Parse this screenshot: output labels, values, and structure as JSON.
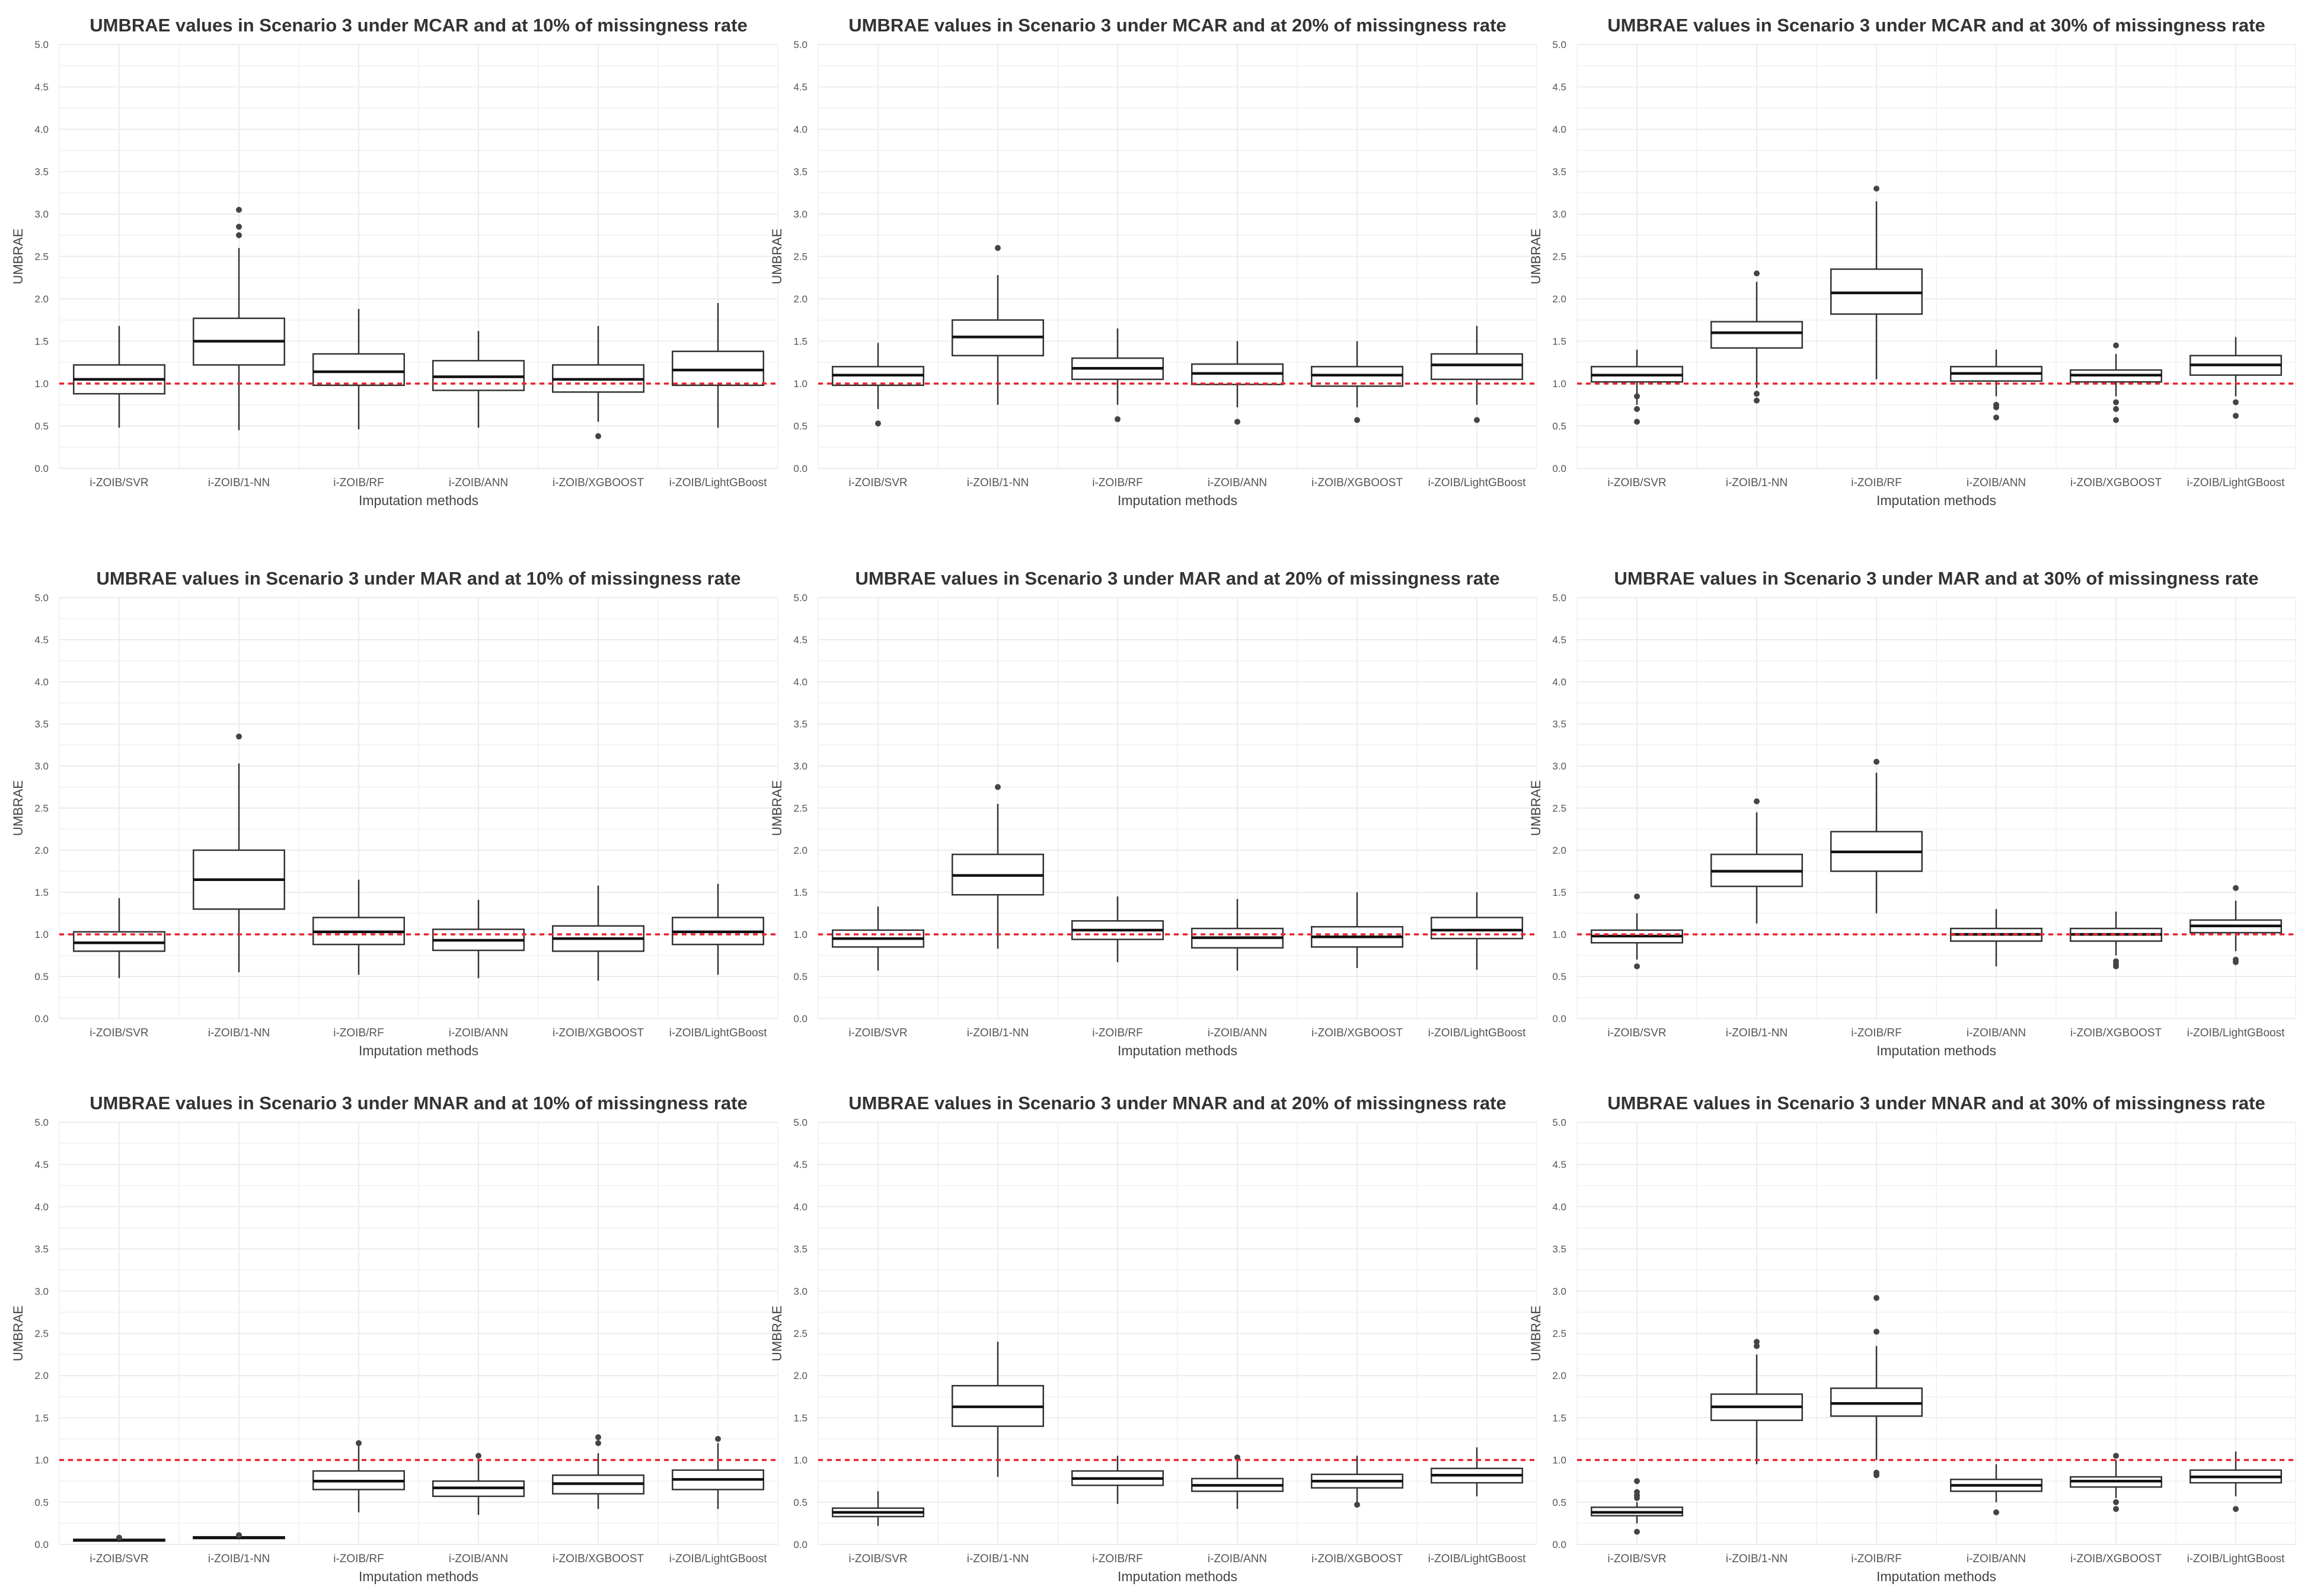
{
  "figure": {
    "layout": "3x3 grid of box plots",
    "categories": [
      "i-ZOIB/SVR",
      "i-ZOIB/1-NN",
      "i-ZOIB/RF",
      "i-ZOIB/ANN",
      "i-ZOIB/XGBOOST",
      "i-ZOIB/LightGBoost"
    ],
    "xlabel": "Imputation methods",
    "ylabel": "UMBRAE",
    "reference_line": 1.0,
    "reference_color": "#e8222b",
    "box_color": "#333333",
    "grid_color": "#ececec"
  },
  "chart_data": [
    {
      "type": "box",
      "title": "UMBRAE values in Scenario 3 under MCAR and at 10% of missingness rate",
      "xlabel": "Imputation methods",
      "ylabel": "UMBRAE",
      "ylim": [
        0,
        5
      ],
      "yticks": [
        "0.0",
        "0.5",
        "1.0",
        "1.5",
        "2.0",
        "2.5",
        "3.0",
        "3.5",
        "4.0",
        "4.5",
        "5.0"
      ],
      "reference_line": 1.0,
      "categories": [
        "i-ZOIB/SVR",
        "i-ZOIB/1-NN",
        "i-ZOIB/RF",
        "i-ZOIB/ANN",
        "i-ZOIB/XGBOOST",
        "i-ZOIB/LightGBoost"
      ],
      "boxes": [
        {
          "whisker_low": 0.48,
          "q1": 0.88,
          "median": 1.05,
          "q3": 1.22,
          "whisker_high": 1.68,
          "outliers": []
        },
        {
          "whisker_low": 0.45,
          "q1": 1.22,
          "median": 1.5,
          "q3": 1.77,
          "whisker_high": 2.6,
          "outliers": [
            2.75,
            2.85,
            3.05
          ]
        },
        {
          "whisker_low": 0.46,
          "q1": 0.98,
          "median": 1.14,
          "q3": 1.35,
          "whisker_high": 1.88,
          "outliers": []
        },
        {
          "whisker_low": 0.48,
          "q1": 0.92,
          "median": 1.08,
          "q3": 1.27,
          "whisker_high": 1.62,
          "outliers": []
        },
        {
          "whisker_low": 0.55,
          "q1": 0.9,
          "median": 1.05,
          "q3": 1.22,
          "whisker_high": 1.68,
          "outliers": [
            0.38
          ]
        },
        {
          "whisker_low": 0.48,
          "q1": 0.98,
          "median": 1.16,
          "q3": 1.38,
          "whisker_high": 1.95,
          "outliers": []
        }
      ]
    },
    {
      "type": "box",
      "title": "UMBRAE values in Scenario 3 under MCAR and at 20% of missingness rate",
      "xlabel": "Imputation methods",
      "ylabel": "UMBRAE",
      "ylim": [
        0,
        5
      ],
      "yticks": [
        "0.0",
        "0.5",
        "1.0",
        "1.5",
        "2.0",
        "2.5",
        "3.0",
        "3.5",
        "4.0",
        "4.5",
        "5.0"
      ],
      "reference_line": 1.0,
      "categories": [
        "i-ZOIB/SVR",
        "i-ZOIB/1-NN",
        "i-ZOIB/RF",
        "i-ZOIB/ANN",
        "i-ZOIB/XGBOOST",
        "i-ZOIB/LightGBoost"
      ],
      "boxes": [
        {
          "whisker_low": 0.7,
          "q1": 0.98,
          "median": 1.1,
          "q3": 1.2,
          "whisker_high": 1.48,
          "outliers": [
            0.53
          ]
        },
        {
          "whisker_low": 0.75,
          "q1": 1.33,
          "median": 1.55,
          "q3": 1.75,
          "whisker_high": 2.28,
          "outliers": [
            2.6
          ]
        },
        {
          "whisker_low": 0.75,
          "q1": 1.05,
          "median": 1.18,
          "q3": 1.3,
          "whisker_high": 1.65,
          "outliers": [
            0.58
          ]
        },
        {
          "whisker_low": 0.72,
          "q1": 0.99,
          "median": 1.12,
          "q3": 1.23,
          "whisker_high": 1.5,
          "outliers": [
            0.55
          ]
        },
        {
          "whisker_low": 0.72,
          "q1": 0.97,
          "median": 1.1,
          "q3": 1.2,
          "whisker_high": 1.5,
          "outliers": [
            0.57
          ]
        },
        {
          "whisker_low": 0.75,
          "q1": 1.05,
          "median": 1.22,
          "q3": 1.35,
          "whisker_high": 1.68,
          "outliers": [
            0.57
          ]
        }
      ]
    },
    {
      "type": "box",
      "title": "UMBRAE values in Scenario 3 under MCAR and at 30% of missingness rate",
      "xlabel": "Imputation methods",
      "ylabel": "UMBRAE",
      "ylim": [
        0,
        5
      ],
      "yticks": [
        "0.0",
        "0.5",
        "1.0",
        "1.5",
        "2.0",
        "2.5",
        "3.0",
        "3.5",
        "4.0",
        "4.5",
        "5.0"
      ],
      "reference_line": 1.0,
      "categories": [
        "i-ZOIB/SVR",
        "i-ZOIB/1-NN",
        "i-ZOIB/RF",
        "i-ZOIB/ANN",
        "i-ZOIB/XGBOOST",
        "i-ZOIB/LightGBoost"
      ],
      "boxes": [
        {
          "whisker_low": 0.75,
          "q1": 1.02,
          "median": 1.1,
          "q3": 1.2,
          "whisker_high": 1.4,
          "outliers": [
            0.55,
            0.7,
            0.85
          ]
        },
        {
          "whisker_low": 0.95,
          "q1": 1.42,
          "median": 1.6,
          "q3": 1.73,
          "whisker_high": 2.2,
          "outliers": [
            2.3,
            0.8,
            0.88
          ]
        },
        {
          "whisker_low": 1.05,
          "q1": 1.82,
          "median": 2.07,
          "q3": 2.35,
          "whisker_high": 3.15,
          "outliers": [
            3.3
          ]
        },
        {
          "whisker_low": 0.85,
          "q1": 1.03,
          "median": 1.12,
          "q3": 1.2,
          "whisker_high": 1.4,
          "outliers": [
            0.6,
            0.72,
            0.75
          ]
        },
        {
          "whisker_low": 0.85,
          "q1": 1.02,
          "median": 1.1,
          "q3": 1.16,
          "whisker_high": 1.35,
          "outliers": [
            0.57,
            0.7,
            0.78,
            1.45
          ]
        },
        {
          "whisker_low": 0.85,
          "q1": 1.1,
          "median": 1.22,
          "q3": 1.33,
          "whisker_high": 1.55,
          "outliers": [
            0.62,
            0.78
          ]
        }
      ]
    },
    {
      "type": "box",
      "title": "UMBRAE values in Scenario 3 under MAR and at 10% of missingness rate",
      "xlabel": "Imputation methods",
      "ylabel": "UMBRAE",
      "ylim": [
        0,
        5
      ],
      "yticks": [
        "0.0",
        "0.5",
        "1.0",
        "1.5",
        "2.0",
        "2.5",
        "3.0",
        "3.5",
        "4.0",
        "4.5",
        "5.0"
      ],
      "reference_line": 1.0,
      "categories": [
        "i-ZOIB/SVR",
        "i-ZOIB/1-NN",
        "i-ZOIB/RF",
        "i-ZOIB/ANN",
        "i-ZOIB/XGBOOST",
        "i-ZOIB/LightGBoost"
      ],
      "boxes": [
        {
          "whisker_low": 0.48,
          "q1": 0.8,
          "median": 0.9,
          "q3": 1.03,
          "whisker_high": 1.43,
          "outliers": []
        },
        {
          "whisker_low": 0.55,
          "q1": 1.3,
          "median": 1.65,
          "q3": 2.0,
          "whisker_high": 3.03,
          "outliers": [
            3.35
          ]
        },
        {
          "whisker_low": 0.52,
          "q1": 0.88,
          "median": 1.03,
          "q3": 1.2,
          "whisker_high": 1.65,
          "outliers": []
        },
        {
          "whisker_low": 0.48,
          "q1": 0.81,
          "median": 0.93,
          "q3": 1.06,
          "whisker_high": 1.41,
          "outliers": []
        },
        {
          "whisker_low": 0.45,
          "q1": 0.8,
          "median": 0.95,
          "q3": 1.1,
          "whisker_high": 1.58,
          "outliers": []
        },
        {
          "whisker_low": 0.52,
          "q1": 0.88,
          "median": 1.03,
          "q3": 1.2,
          "whisker_high": 1.6,
          "outliers": []
        }
      ]
    },
    {
      "type": "box",
      "title": "UMBRAE values in Scenario 3 under MAR and at 20% of missingness rate",
      "xlabel": "Imputation methods",
      "ylabel": "UMBRAE",
      "ylim": [
        0,
        5
      ],
      "yticks": [
        "0.0",
        "0.5",
        "1.0",
        "1.5",
        "2.0",
        "2.5",
        "3.0",
        "3.5",
        "4.0",
        "4.5",
        "5.0"
      ],
      "reference_line": 1.0,
      "categories": [
        "i-ZOIB/SVR",
        "i-ZOIB/1-NN",
        "i-ZOIB/RF",
        "i-ZOIB/ANN",
        "i-ZOIB/XGBOOST",
        "i-ZOIB/LightGBoost"
      ],
      "boxes": [
        {
          "whisker_low": 0.57,
          "q1": 0.85,
          "median": 0.95,
          "q3": 1.05,
          "whisker_high": 1.33,
          "outliers": []
        },
        {
          "whisker_low": 0.83,
          "q1": 1.47,
          "median": 1.7,
          "q3": 1.95,
          "whisker_high": 2.55,
          "outliers": [
            2.75
          ]
        },
        {
          "whisker_low": 0.67,
          "q1": 0.94,
          "median": 1.05,
          "q3": 1.16,
          "whisker_high": 1.45,
          "outliers": []
        },
        {
          "whisker_low": 0.57,
          "q1": 0.84,
          "median": 0.96,
          "q3": 1.07,
          "whisker_high": 1.42,
          "outliers": []
        },
        {
          "whisker_low": 0.6,
          "q1": 0.85,
          "median": 0.97,
          "q3": 1.09,
          "whisker_high": 1.5,
          "outliers": []
        },
        {
          "whisker_low": 0.58,
          "q1": 0.95,
          "median": 1.05,
          "q3": 1.2,
          "whisker_high": 1.5,
          "outliers": []
        }
      ]
    },
    {
      "type": "box",
      "title": "UMBRAE values in Scenario 3 under MAR and at 30% of missingness rate",
      "xlabel": "Imputation methods",
      "ylabel": "UMBRAE",
      "ylim": [
        0,
        5
      ],
      "yticks": [
        "0.0",
        "0.5",
        "1.0",
        "1.5",
        "2.0",
        "2.5",
        "3.0",
        "3.5",
        "4.0",
        "4.5",
        "5.0"
      ],
      "reference_line": 1.0,
      "categories": [
        "i-ZOIB/SVR",
        "i-ZOIB/1-NN",
        "i-ZOIB/RF",
        "i-ZOIB/ANN",
        "i-ZOIB/XGBOOST",
        "i-ZOIB/LightGBoost"
      ],
      "boxes": [
        {
          "whisker_low": 0.7,
          "q1": 0.9,
          "median": 0.98,
          "q3": 1.05,
          "whisker_high": 1.25,
          "outliers": [
            0.62,
            1.45
          ]
        },
        {
          "whisker_low": 1.13,
          "q1": 1.57,
          "median": 1.75,
          "q3": 1.95,
          "whisker_high": 2.45,
          "outliers": [
            2.58
          ]
        },
        {
          "whisker_low": 1.25,
          "q1": 1.75,
          "median": 1.98,
          "q3": 2.22,
          "whisker_high": 2.92,
          "outliers": [
            3.05
          ]
        },
        {
          "whisker_low": 0.62,
          "q1": 0.92,
          "median": 1.0,
          "q3": 1.07,
          "whisker_high": 1.3,
          "outliers": []
        },
        {
          "whisker_low": 0.75,
          "q1": 0.92,
          "median": 1.0,
          "q3": 1.07,
          "whisker_high": 1.27,
          "outliers": [
            0.62,
            0.65,
            0.68
          ]
        },
        {
          "whisker_low": 0.8,
          "q1": 1.02,
          "median": 1.1,
          "q3": 1.17,
          "whisker_high": 1.4,
          "outliers": [
            0.67,
            0.7,
            1.55
          ]
        }
      ]
    },
    {
      "type": "box",
      "title": "UMBRAE values in Scenario 3 under MNAR and at 10% of missingness rate",
      "xlabel": "Imputation methods",
      "ylabel": "UMBRAE",
      "ylim": [
        0,
        5
      ],
      "yticks": [
        "0.0",
        "0.5",
        "1.0",
        "1.5",
        "2.0",
        "2.5",
        "3.0",
        "3.5",
        "4.0",
        "4.5",
        "5.0"
      ],
      "reference_line": 1.0,
      "categories": [
        "i-ZOIB/SVR",
        "i-ZOIB/1-NN",
        "i-ZOIB/RF",
        "i-ZOIB/ANN",
        "i-ZOIB/XGBOOST",
        "i-ZOIB/LightGBoost"
      ],
      "boxes": [
        {
          "whisker_low": 0.03,
          "q1": 0.04,
          "median": 0.05,
          "q3": 0.06,
          "whisker_high": 0.07,
          "outliers": [
            0.08
          ]
        },
        {
          "whisker_low": 0.06,
          "q1": 0.07,
          "median": 0.08,
          "q3": 0.09,
          "whisker_high": 0.1,
          "outliers": [
            0.11
          ]
        },
        {
          "whisker_low": 0.38,
          "q1": 0.65,
          "median": 0.75,
          "q3": 0.87,
          "whisker_high": 1.17,
          "outliers": [
            1.2
          ]
        },
        {
          "whisker_low": 0.35,
          "q1": 0.57,
          "median": 0.67,
          "q3": 0.75,
          "whisker_high": 1.0,
          "outliers": [
            1.05
          ]
        },
        {
          "whisker_low": 0.42,
          "q1": 0.6,
          "median": 0.72,
          "q3": 0.82,
          "whisker_high": 1.08,
          "outliers": [
            1.2,
            1.27
          ]
        },
        {
          "whisker_low": 0.42,
          "q1": 0.65,
          "median": 0.77,
          "q3": 0.88,
          "whisker_high": 1.2,
          "outliers": [
            1.25
          ]
        }
      ]
    },
    {
      "type": "box",
      "title": "UMBRAE values in Scenario 3 under MNAR and at 20% of missingness rate",
      "xlabel": "Imputation methods",
      "ylabel": "UMBRAE",
      "ylim": [
        0,
        5
      ],
      "yticks": [
        "0.0",
        "0.5",
        "1.0",
        "1.5",
        "2.0",
        "2.5",
        "3.0",
        "3.5",
        "4.0",
        "4.5",
        "5.0"
      ],
      "reference_line": 1.0,
      "categories": [
        "i-ZOIB/SVR",
        "i-ZOIB/1-NN",
        "i-ZOIB/RF",
        "i-ZOIB/ANN",
        "i-ZOIB/XGBOOST",
        "i-ZOIB/LightGBoost"
      ],
      "boxes": [
        {
          "whisker_low": 0.22,
          "q1": 0.33,
          "median": 0.38,
          "q3": 0.43,
          "whisker_high": 0.63,
          "outliers": []
        },
        {
          "whisker_low": 0.8,
          "q1": 1.4,
          "median": 1.63,
          "q3": 1.88,
          "whisker_high": 2.4,
          "outliers": []
        },
        {
          "whisker_low": 0.48,
          "q1": 0.7,
          "median": 0.78,
          "q3": 0.87,
          "whisker_high": 1.05,
          "outliers": []
        },
        {
          "whisker_low": 0.42,
          "q1": 0.63,
          "median": 0.7,
          "q3": 0.78,
          "whisker_high": 1.0,
          "outliers": [
            1.03
          ]
        },
        {
          "whisker_low": 0.5,
          "q1": 0.67,
          "median": 0.75,
          "q3": 0.83,
          "whisker_high": 1.05,
          "outliers": [
            0.47
          ]
        },
        {
          "whisker_low": 0.57,
          "q1": 0.73,
          "median": 0.82,
          "q3": 0.9,
          "whisker_high": 1.15,
          "outliers": []
        }
      ]
    },
    {
      "type": "box",
      "title": "UMBRAE values in Scenario 3 under MNAR and at 30% of missingness rate",
      "xlabel": "Imputation methods",
      "ylabel": "UMBRAE",
      "ylim": [
        0,
        5
      ],
      "yticks": [
        "0.0",
        "0.5",
        "1.0",
        "1.5",
        "2.0",
        "2.5",
        "3.0",
        "3.5",
        "4.0",
        "4.5",
        "5.0"
      ],
      "reference_line": 1.0,
      "categories": [
        "i-ZOIB/SVR",
        "i-ZOIB/1-NN",
        "i-ZOIB/RF",
        "i-ZOIB/ANN",
        "i-ZOIB/XGBOOST",
        "i-ZOIB/LightGBoost"
      ],
      "boxes": [
        {
          "whisker_low": 0.25,
          "q1": 0.34,
          "median": 0.38,
          "q3": 0.44,
          "whisker_high": 0.5,
          "outliers": [
            0.15,
            0.55,
            0.58,
            0.62,
            0.75
          ]
        },
        {
          "whisker_low": 0.95,
          "q1": 1.47,
          "median": 1.63,
          "q3": 1.78,
          "whisker_high": 2.25,
          "outliers": [
            2.35,
            2.4
          ]
        },
        {
          "whisker_low": 1.0,
          "q1": 1.52,
          "median": 1.67,
          "q3": 1.85,
          "whisker_high": 2.35,
          "outliers": [
            2.52,
            2.92,
            0.82,
            0.85
          ]
        },
        {
          "whisker_low": 0.5,
          "q1": 0.63,
          "median": 0.7,
          "q3": 0.77,
          "whisker_high": 0.95,
          "outliers": [
            0.38
          ]
        },
        {
          "whisker_low": 0.55,
          "q1": 0.68,
          "median": 0.75,
          "q3": 0.8,
          "whisker_high": 1.0,
          "outliers": [
            0.42,
            0.5,
            1.05
          ]
        },
        {
          "whisker_low": 0.57,
          "q1": 0.73,
          "median": 0.8,
          "q3": 0.88,
          "whisker_high": 1.1,
          "outliers": [
            0.42
          ]
        }
      ]
    }
  ]
}
